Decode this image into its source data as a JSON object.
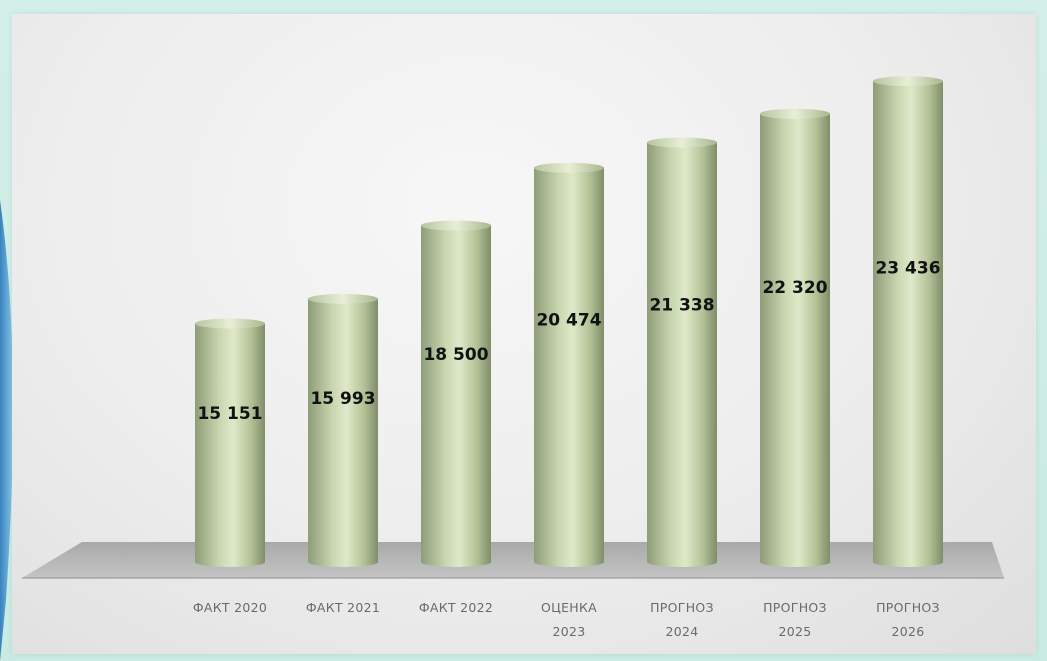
{
  "chart_data": {
    "type": "bar",
    "style": "3d-cylinder",
    "categories": [
      [
        "ФАКТ 2020"
      ],
      [
        "ФАКТ 2021"
      ],
      [
        "ФАКТ 2022"
      ],
      [
        "ОЦЕНКА",
        "2023"
      ],
      [
        "ПРОГНОЗ",
        "2024"
      ],
      [
        "ПРОГНОЗ",
        "2025"
      ],
      [
        "ПРОГНОЗ",
        "2026"
      ]
    ],
    "values": [
      15151,
      15993,
      18500,
      20474,
      21338,
      22320,
      23436
    ],
    "value_labels": [
      "15 151",
      "15 993",
      "18 500",
      "20 474",
      "21 338",
      "22 320",
      "23 436"
    ],
    "ylim": [
      7000,
      24500
    ],
    "grid": false,
    "legend": "none"
  },
  "colors": {
    "bar_dark": "#8e9c78",
    "bar_light": "#dfe9c8",
    "floor": "#b7b7b7",
    "background": "#d0ede6",
    "accent_blue": "#2f83c9"
  }
}
